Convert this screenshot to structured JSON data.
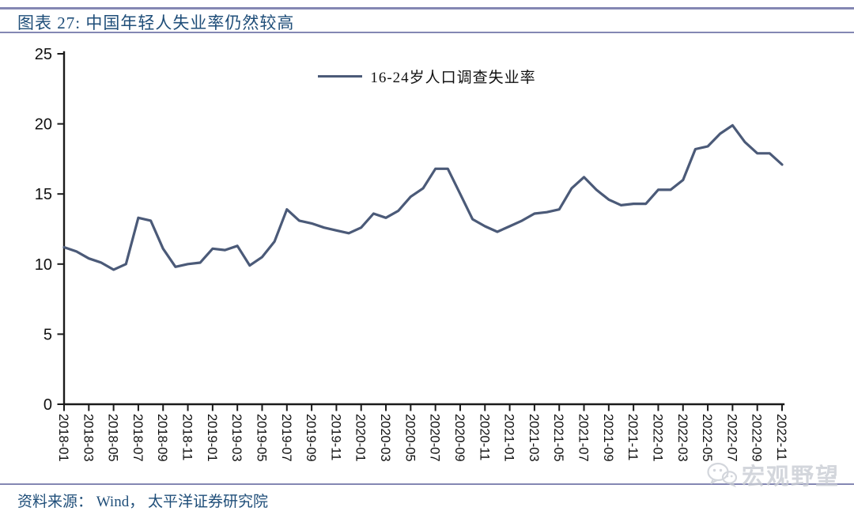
{
  "figure": {
    "title": "图表 27:  中国年轻人失业率仍然较高",
    "source_note": "资料来源： Wind， 太平洋证券研究院",
    "watermark": "宏观野望"
  },
  "chart_data": {
    "type": "line",
    "title": "图表 27: 中国年轻人失业率仍然较高",
    "legend": [
      "16-24岁人口调查失业率"
    ],
    "legend_position": "top-center",
    "grid": false,
    "ylim": [
      0,
      25
    ],
    "yticks": [
      0,
      5,
      10,
      15,
      20,
      25
    ],
    "x_tick_labels": [
      "2018-01",
      "2018-03",
      "2018-05",
      "2018-07",
      "2018-09",
      "2018-11",
      "2019-01",
      "2019-03",
      "2019-05",
      "2019-07",
      "2019-09",
      "2019-11",
      "2020-01",
      "2020-03",
      "2020-05",
      "2020-07",
      "2020-09",
      "2020-11",
      "2021-01",
      "2021-03",
      "2021-05",
      "2021-07",
      "2021-09",
      "2021-11",
      "2022-01",
      "2022-03",
      "2022-05",
      "2022-07",
      "2022-09",
      "2022-11"
    ],
    "x": [
      "2018-01",
      "2018-02",
      "2018-03",
      "2018-04",
      "2018-05",
      "2018-06",
      "2018-07",
      "2018-08",
      "2018-09",
      "2018-10",
      "2018-11",
      "2018-12",
      "2019-01",
      "2019-02",
      "2019-03",
      "2019-04",
      "2019-05",
      "2019-06",
      "2019-07",
      "2019-08",
      "2019-09",
      "2019-10",
      "2019-11",
      "2019-12",
      "2020-01",
      "2020-02",
      "2020-03",
      "2020-04",
      "2020-05",
      "2020-06",
      "2020-07",
      "2020-08",
      "2020-09",
      "2020-10",
      "2020-11",
      "2020-12",
      "2021-01",
      "2021-02",
      "2021-03",
      "2021-04",
      "2021-05",
      "2021-06",
      "2021-07",
      "2021-08",
      "2021-09",
      "2021-10",
      "2021-11",
      "2021-12",
      "2022-01",
      "2022-02",
      "2022-03",
      "2022-04",
      "2022-05",
      "2022-06",
      "2022-07",
      "2022-08",
      "2022-09",
      "2022-10",
      "2022-11"
    ],
    "series": [
      {
        "name": "16-24岁人口调查失业率",
        "values": [
          11.2,
          10.9,
          10.4,
          10.1,
          9.6,
          10.0,
          13.3,
          13.1,
          11.1,
          9.8,
          10.0,
          10.1,
          11.1,
          11.0,
          11.3,
          9.9,
          10.5,
          11.6,
          13.9,
          13.1,
          12.9,
          12.6,
          12.4,
          12.2,
          12.6,
          13.6,
          13.3,
          13.8,
          14.8,
          15.4,
          16.8,
          16.8,
          15.0,
          13.2,
          12.7,
          12.3,
          12.7,
          13.1,
          13.6,
          13.7,
          13.9,
          15.4,
          16.2,
          15.3,
          14.6,
          14.2,
          14.3,
          14.3,
          15.3,
          15.3,
          16.0,
          18.2,
          18.4,
          19.3,
          19.9,
          18.7,
          17.9,
          17.9,
          17.1
        ]
      }
    ]
  },
  "colors": {
    "series_line": "#4b5a78",
    "title_text": "#1f4e79",
    "rule": "#8487b3",
    "axis": "#1a1a1a",
    "watermark": "#c9cdd4"
  }
}
